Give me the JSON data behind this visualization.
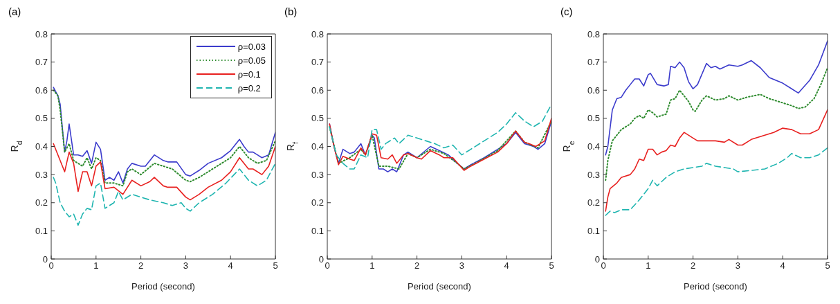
{
  "chart_data": [
    {
      "type": "line",
      "title": "(a)",
      "xlabel": "Period (second)",
      "ylabel": "R$_{d}$",
      "xlim": [
        0,
        5
      ],
      "xticks": [
        0,
        1,
        2,
        3,
        4,
        5
      ],
      "ylim": [
        0,
        0.8
      ],
      "yticks": [
        0,
        0.1,
        0.2,
        0.3,
        0.4,
        0.5,
        0.6,
        0.7,
        0.8
      ],
      "legend": "top right",
      "marker": "none",
      "series": [
        {
          "name": "ρ=0.03",
          "color": "#3b3bcc",
          "line_style": "solid",
          "x": [
            0.05,
            0.15,
            0.2,
            0.3,
            0.35,
            0.4,
            0.5,
            0.6,
            0.7,
            0.8,
            0.9,
            1.0,
            1.1,
            1.2,
            1.3,
            1.4,
            1.5,
            1.6,
            1.7,
            1.8,
            2.0,
            2.1,
            2.3,
            2.5,
            2.6,
            2.8,
            3.0,
            3.1,
            3.3,
            3.5,
            3.8,
            4.0,
            4.2,
            4.3,
            4.4,
            4.5,
            4.6,
            4.7,
            4.85,
            5.0
          ],
          "values": [
            0.61,
            0.58,
            0.55,
            0.38,
            0.42,
            0.48,
            0.37,
            0.37,
            0.365,
            0.385,
            0.34,
            0.415,
            0.39,
            0.28,
            0.29,
            0.28,
            0.31,
            0.27,
            0.32,
            0.34,
            0.33,
            0.33,
            0.37,
            0.35,
            0.345,
            0.345,
            0.3,
            0.295,
            0.315,
            0.34,
            0.36,
            0.385,
            0.425,
            0.4,
            0.38,
            0.38,
            0.37,
            0.36,
            0.37,
            0.45
          ]
        },
        {
          "name": "ρ=0.05",
          "color": "#2e8b2e",
          "line_style": "dotted",
          "x": [
            0.05,
            0.15,
            0.2,
            0.3,
            0.4,
            0.5,
            0.6,
            0.7,
            0.8,
            0.9,
            1.0,
            1.1,
            1.2,
            1.4,
            1.6,
            1.7,
            1.8,
            2.0,
            2.3,
            2.5,
            2.7,
            3.0,
            3.1,
            3.3,
            3.5,
            3.8,
            4.0,
            4.2,
            4.4,
            4.6,
            4.8,
            5.0
          ],
          "values": [
            0.6,
            0.58,
            0.53,
            0.38,
            0.41,
            0.35,
            0.34,
            0.33,
            0.36,
            0.32,
            0.36,
            0.35,
            0.27,
            0.27,
            0.26,
            0.31,
            0.32,
            0.3,
            0.34,
            0.33,
            0.32,
            0.28,
            0.275,
            0.29,
            0.31,
            0.34,
            0.36,
            0.4,
            0.36,
            0.34,
            0.35,
            0.42
          ]
        },
        {
          "name": "ρ=0.1",
          "color": "#e8201f",
          "line_style": "solid",
          "x": [
            0.05,
            0.15,
            0.3,
            0.4,
            0.5,
            0.6,
            0.7,
            0.8,
            0.9,
            1.0,
            1.1,
            1.2,
            1.4,
            1.6,
            1.8,
            2.0,
            2.2,
            2.3,
            2.5,
            2.6,
            2.8,
            3.0,
            3.1,
            3.3,
            3.5,
            3.8,
            4.0,
            4.2,
            4.4,
            4.5,
            4.7,
            4.85,
            5.0
          ],
          "values": [
            0.41,
            0.37,
            0.31,
            0.38,
            0.34,
            0.24,
            0.31,
            0.31,
            0.26,
            0.33,
            0.345,
            0.25,
            0.255,
            0.23,
            0.28,
            0.26,
            0.275,
            0.29,
            0.26,
            0.255,
            0.255,
            0.22,
            0.21,
            0.23,
            0.255,
            0.28,
            0.31,
            0.36,
            0.32,
            0.32,
            0.3,
            0.33,
            0.4
          ]
        },
        {
          "name": "ρ=0.2",
          "color": "#1fb5b0",
          "line_style": "dashed",
          "x": [
            0.05,
            0.1,
            0.2,
            0.3,
            0.4,
            0.5,
            0.6,
            0.7,
            0.8,
            0.9,
            1.0,
            1.1,
            1.2,
            1.4,
            1.5,
            1.6,
            1.8,
            2.0,
            2.2,
            2.5,
            2.7,
            2.9,
            3.0,
            3.1,
            3.3,
            3.6,
            3.9,
            4.2,
            4.4,
            4.6,
            4.8,
            5.0
          ],
          "values": [
            0.29,
            0.27,
            0.2,
            0.17,
            0.15,
            0.16,
            0.12,
            0.16,
            0.18,
            0.175,
            0.26,
            0.27,
            0.18,
            0.2,
            0.24,
            0.21,
            0.23,
            0.22,
            0.21,
            0.2,
            0.19,
            0.2,
            0.18,
            0.17,
            0.2,
            0.23,
            0.27,
            0.32,
            0.28,
            0.26,
            0.28,
            0.34
          ]
        }
      ]
    },
    {
      "type": "line",
      "title": "(b)",
      "xlabel": "Period (second)",
      "ylabel": "R$_{f}$",
      "xlim": [
        0,
        5
      ],
      "xticks": [
        0,
        1,
        2,
        3,
        4,
        5
      ],
      "ylim": [
        0,
        0.8
      ],
      "yticks": [
        0,
        0.1,
        0.2,
        0.3,
        0.4,
        0.5,
        0.6,
        0.7,
        0.8
      ],
      "marker": "none",
      "series": [
        {
          "color": "#3b3bcc",
          "line_style": "solid",
          "x": [
            0.05,
            0.15,
            0.25,
            0.35,
            0.5,
            0.6,
            0.75,
            0.85,
            1.0,
            1.05,
            1.15,
            1.25,
            1.35,
            1.45,
            1.55,
            1.7,
            1.8,
            2.0,
            2.3,
            2.5,
            2.7,
            2.9,
            3.05,
            3.2,
            3.5,
            3.8,
            4.0,
            4.2,
            4.4,
            4.6,
            4.7,
            4.85,
            5.0
          ],
          "values": [
            0.48,
            0.4,
            0.34,
            0.39,
            0.375,
            0.38,
            0.41,
            0.37,
            0.44,
            0.43,
            0.32,
            0.32,
            0.31,
            0.32,
            0.31,
            0.37,
            0.38,
            0.36,
            0.4,
            0.385,
            0.37,
            0.34,
            0.32,
            0.335,
            0.36,
            0.39,
            0.41,
            0.45,
            0.41,
            0.4,
            0.39,
            0.41,
            0.49
          ]
        },
        {
          "color": "#2e8b2e",
          "line_style": "dotted",
          "x": [
            0.05,
            0.25,
            0.5,
            0.75,
            0.85,
            1.0,
            1.15,
            1.35,
            1.6,
            1.8,
            2.0,
            2.3,
            2.6,
            2.9,
            3.05,
            3.3,
            3.8,
            4.2,
            4.4,
            4.7,
            5.0
          ],
          "values": [
            0.47,
            0.34,
            0.36,
            0.39,
            0.37,
            0.44,
            0.33,
            0.33,
            0.32,
            0.375,
            0.36,
            0.39,
            0.375,
            0.34,
            0.32,
            0.34,
            0.385,
            0.455,
            0.415,
            0.395,
            0.49
          ]
        },
        {
          "color": "#e8201f",
          "line_style": "solid",
          "x": [
            0.05,
            0.15,
            0.25,
            0.35,
            0.5,
            0.6,
            0.75,
            0.85,
            1.0,
            1.1,
            1.2,
            1.35,
            1.45,
            1.55,
            1.7,
            1.8,
            2.0,
            2.1,
            2.3,
            2.5,
            2.6,
            2.8,
            3.05,
            3.2,
            3.5,
            3.8,
            4.0,
            4.2,
            4.4,
            4.5,
            4.65,
            4.85,
            5.0
          ],
          "values": [
            0.48,
            0.4,
            0.335,
            0.365,
            0.355,
            0.35,
            0.395,
            0.37,
            0.445,
            0.44,
            0.36,
            0.355,
            0.37,
            0.34,
            0.37,
            0.375,
            0.36,
            0.355,
            0.385,
            0.37,
            0.36,
            0.36,
            0.315,
            0.33,
            0.355,
            0.38,
            0.41,
            0.455,
            0.415,
            0.41,
            0.4,
            0.42,
            0.5
          ]
        },
        {
          "color": "#1fb5b0",
          "line_style": "dashed",
          "x": [
            0.05,
            0.2,
            0.35,
            0.5,
            0.6,
            0.75,
            0.9,
            1.0,
            1.1,
            1.2,
            1.3,
            1.5,
            1.6,
            1.8,
            2.0,
            2.2,
            2.4,
            2.6,
            2.8,
            3.0,
            3.2,
            3.5,
            3.8,
            4.0,
            4.2,
            4.4,
            4.6,
            4.8,
            5.0
          ],
          "values": [
            0.47,
            0.37,
            0.34,
            0.32,
            0.32,
            0.37,
            0.36,
            0.46,
            0.46,
            0.39,
            0.41,
            0.43,
            0.41,
            0.44,
            0.43,
            0.42,
            0.41,
            0.395,
            0.405,
            0.37,
            0.39,
            0.42,
            0.45,
            0.48,
            0.52,
            0.49,
            0.47,
            0.49,
            0.55
          ]
        }
      ]
    },
    {
      "type": "line",
      "title": "(c)",
      "xlabel": "Period (second)",
      "ylabel": "R$_{e}$",
      "xlim": [
        0,
        5
      ],
      "xticks": [
        0,
        1,
        2,
        3,
        4,
        5
      ],
      "ylim": [
        0,
        0.8
      ],
      "yticks": [
        0,
        0.1,
        0.2,
        0.3,
        0.4,
        0.5,
        0.6,
        0.7,
        0.8
      ],
      "marker": "none",
      "series": [
        {
          "color": "#3b3bcc",
          "line_style": "solid",
          "x": [
            0.05,
            0.1,
            0.2,
            0.3,
            0.4,
            0.5,
            0.6,
            0.7,
            0.8,
            0.9,
            1.0,
            1.05,
            1.2,
            1.35,
            1.45,
            1.5,
            1.6,
            1.7,
            1.8,
            1.9,
            2.0,
            2.1,
            2.3,
            2.4,
            2.5,
            2.6,
            2.8,
            3.0,
            3.1,
            3.3,
            3.5,
            3.7,
            4.0,
            4.2,
            4.35,
            4.6,
            4.8,
            5.0
          ],
          "values": [
            0.37,
            0.4,
            0.53,
            0.57,
            0.575,
            0.6,
            0.62,
            0.64,
            0.64,
            0.615,
            0.655,
            0.66,
            0.62,
            0.615,
            0.62,
            0.685,
            0.68,
            0.7,
            0.68,
            0.63,
            0.605,
            0.62,
            0.695,
            0.68,
            0.685,
            0.675,
            0.69,
            0.685,
            0.69,
            0.705,
            0.68,
            0.645,
            0.625,
            0.605,
            0.59,
            0.635,
            0.69,
            0.775
          ]
        },
        {
          "color": "#2e8b2e",
          "line_style": "dotted",
          "x": [
            0.05,
            0.1,
            0.2,
            0.3,
            0.4,
            0.5,
            0.6,
            0.7,
            0.8,
            0.9,
            1.0,
            1.1,
            1.2,
            1.4,
            1.5,
            1.6,
            1.7,
            1.8,
            1.9,
            2.0,
            2.05,
            2.2,
            2.3,
            2.5,
            2.7,
            2.8,
            3.0,
            3.2,
            3.5,
            3.7,
            4.0,
            4.2,
            4.35,
            4.5,
            4.7,
            4.85,
            5.0
          ],
          "values": [
            0.28,
            0.35,
            0.42,
            0.44,
            0.46,
            0.47,
            0.48,
            0.5,
            0.51,
            0.5,
            0.53,
            0.52,
            0.505,
            0.515,
            0.565,
            0.57,
            0.6,
            0.58,
            0.56,
            0.53,
            0.525,
            0.565,
            0.58,
            0.565,
            0.57,
            0.58,
            0.565,
            0.575,
            0.585,
            0.57,
            0.555,
            0.545,
            0.535,
            0.54,
            0.57,
            0.62,
            0.68
          ]
        },
        {
          "color": "#e8201f",
          "line_style": "solid",
          "x": [
            0.05,
            0.1,
            0.15,
            0.3,
            0.4,
            0.6,
            0.7,
            0.8,
            0.9,
            1.0,
            1.1,
            1.2,
            1.3,
            1.4,
            1.5,
            1.6,
            1.7,
            1.8,
            2.0,
            2.1,
            2.3,
            2.5,
            2.7,
            2.8,
            3.0,
            3.1,
            3.3,
            3.6,
            3.8,
            4.0,
            4.2,
            4.4,
            4.6,
            4.8,
            5.0
          ],
          "values": [
            0.17,
            0.22,
            0.25,
            0.27,
            0.29,
            0.3,
            0.32,
            0.355,
            0.35,
            0.39,
            0.39,
            0.37,
            0.38,
            0.385,
            0.405,
            0.4,
            0.43,
            0.45,
            0.43,
            0.42,
            0.42,
            0.42,
            0.415,
            0.425,
            0.405,
            0.405,
            0.425,
            0.44,
            0.45,
            0.465,
            0.46,
            0.445,
            0.445,
            0.46,
            0.53
          ]
        },
        {
          "color": "#1fb5b0",
          "line_style": "dashed",
          "x": [
            0.05,
            0.15,
            0.25,
            0.4,
            0.6,
            0.8,
            1.0,
            1.1,
            1.2,
            1.4,
            1.6,
            1.8,
            2.0,
            2.2,
            2.3,
            2.5,
            2.7,
            2.9,
            3.0,
            3.3,
            3.6,
            3.9,
            4.1,
            4.2,
            4.4,
            4.6,
            4.8,
            5.0
          ],
          "values": [
            0.155,
            0.17,
            0.165,
            0.175,
            0.175,
            0.21,
            0.25,
            0.28,
            0.26,
            0.29,
            0.31,
            0.32,
            0.325,
            0.33,
            0.34,
            0.33,
            0.325,
            0.32,
            0.31,
            0.315,
            0.32,
            0.34,
            0.36,
            0.375,
            0.36,
            0.36,
            0.37,
            0.395
          ]
        }
      ]
    }
  ]
}
